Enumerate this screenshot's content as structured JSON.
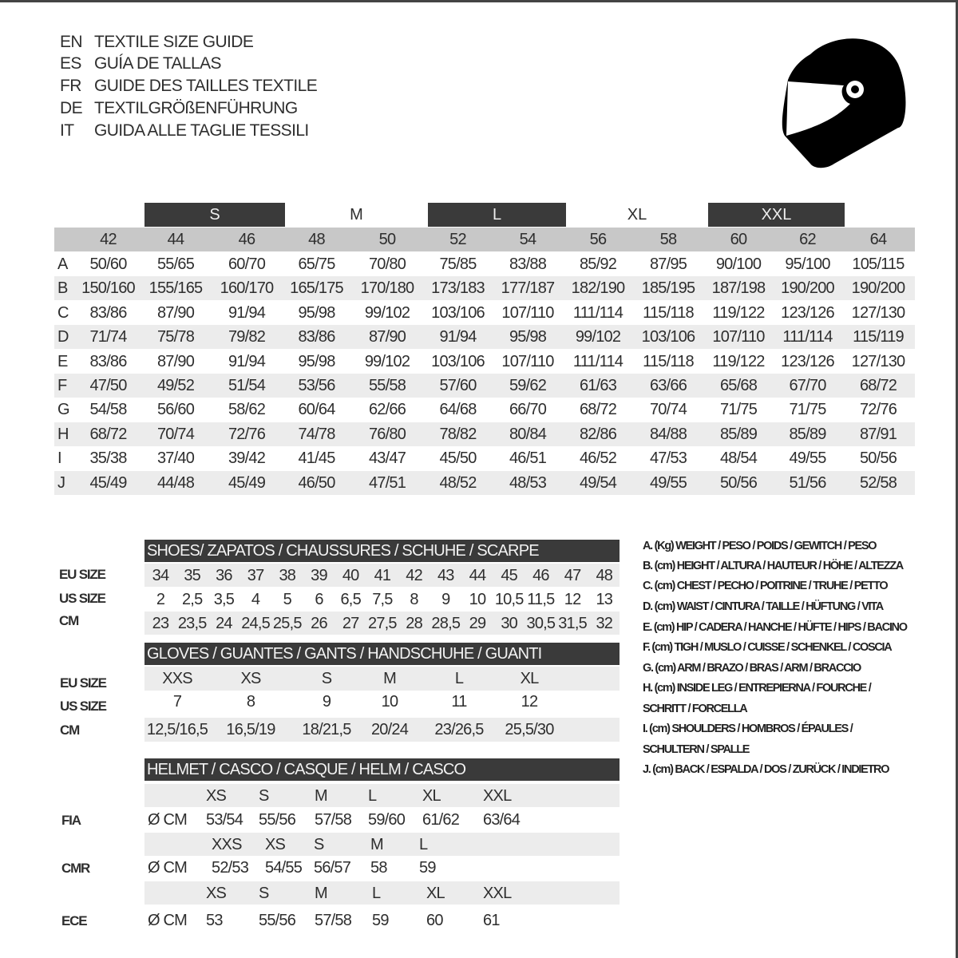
{
  "titles": [
    {
      "code": "EN",
      "text": "TEXTILE SIZE GUIDE"
    },
    {
      "code": "ES",
      "text": "GUÍA DE TALLAS"
    },
    {
      "code": "FR",
      "text": "GUIDE DES TAILLES TEXTILE"
    },
    {
      "code": "DE",
      "text": "TEXTILGRÖßENFÜHRUNG"
    },
    {
      "code": "IT",
      "text": "GUIDA ALLE TAGLIE TESSILI"
    }
  ],
  "logo_icon": "helmet-icon",
  "colors": {
    "dark_bar": "#3a3a3a",
    "header_gray": "#c8c8c8",
    "stripe_gray": "#ececec"
  },
  "textile": {
    "size_groups": [
      "S",
      "M",
      "L",
      "XL",
      "XXL"
    ],
    "sizes": [
      "42",
      "44",
      "46",
      "48",
      "50",
      "52",
      "54",
      "56",
      "58",
      "60",
      "62",
      "64"
    ],
    "rows": [
      {
        "label": "A",
        "values": [
          "50/60",
          "55/65",
          "60/70",
          "65/75",
          "70/80",
          "75/85",
          "83/88",
          "85/92",
          "87/95",
          "90/100",
          "95/100",
          "105/115"
        ]
      },
      {
        "label": "B",
        "values": [
          "150/160",
          "155/165",
          "160/170",
          "165/175",
          "170/180",
          "173/183",
          "177/187",
          "182/190",
          "185/195",
          "187/198",
          "190/200",
          "190/200"
        ]
      },
      {
        "label": "C",
        "values": [
          "83/86",
          "87/90",
          "91/94",
          "95/98",
          "99/102",
          "103/106",
          "107/110",
          "111/114",
          "115/118",
          "119/122",
          "123/126",
          "127/130"
        ]
      },
      {
        "label": "D",
        "values": [
          "71/74",
          "75/78",
          "79/82",
          "83/86",
          "87/90",
          "91/94",
          "95/98",
          "99/102",
          "103/106",
          "107/110",
          "111/114",
          "115/119"
        ]
      },
      {
        "label": "E",
        "values": [
          "83/86",
          "87/90",
          "91/94",
          "95/98",
          "99/102",
          "103/106",
          "107/110",
          "111/114",
          "115/118",
          "119/122",
          "123/126",
          "127/130"
        ]
      },
      {
        "label": "F",
        "values": [
          "47/50",
          "49/52",
          "51/54",
          "53/56",
          "55/58",
          "57/60",
          "59/62",
          "61/63",
          "63/66",
          "65/68",
          "67/70",
          "68/72"
        ]
      },
      {
        "label": "G",
        "values": [
          "54/58",
          "56/60",
          "58/62",
          "60/64",
          "62/66",
          "64/68",
          "66/70",
          "68/72",
          "70/74",
          "71/75",
          "71/75",
          "72/76"
        ]
      },
      {
        "label": "H",
        "values": [
          "68/72",
          "70/74",
          "72/76",
          "74/78",
          "76/80",
          "78/82",
          "80/84",
          "82/86",
          "84/88",
          "85/89",
          "85/89",
          "87/91"
        ]
      },
      {
        "label": "I",
        "values": [
          "35/38",
          "37/40",
          "39/42",
          "41/45",
          "43/47",
          "45/50",
          "46/51",
          "46/52",
          "47/53",
          "48/54",
          "49/55",
          "50/56"
        ]
      },
      {
        "label": "J",
        "values": [
          "45/49",
          "44/48",
          "45/49",
          "46/50",
          "47/51",
          "48/52",
          "48/53",
          "49/54",
          "49/55",
          "50/56",
          "51/56",
          "52/58"
        ]
      }
    ]
  },
  "shoes": {
    "title": "SHOES/ ZAPATOS / CHAUSSURES / SCHUHE / SCARPE",
    "rows": [
      {
        "label": "EU SIZE",
        "values": [
          "34",
          "35",
          "36",
          "37",
          "38",
          "39",
          "40",
          "41",
          "42",
          "43",
          "44",
          "45",
          "46",
          "47",
          "48"
        ]
      },
      {
        "label": "US SIZE",
        "values": [
          "2",
          "2,5",
          "3,5",
          "4",
          "5",
          "6",
          "6,5",
          "7,5",
          "8",
          "9",
          "10",
          "10,5",
          "11,5",
          "12",
          "13"
        ]
      },
      {
        "label": "CM",
        "values": [
          "23",
          "23,5",
          "24",
          "24,5",
          "25,5",
          "26",
          "27",
          "27,5",
          "28",
          "28,5",
          "29",
          "30",
          "30,5",
          "31,5",
          "32"
        ]
      }
    ]
  },
  "gloves": {
    "title": "GLOVES / GUANTES / GANTS / HANDSCHUHE / GUANTI",
    "rows": [
      {
        "label": "EU SIZE",
        "values": [
          "XXS",
          "XS",
          "S",
          "M",
          "L",
          "XL"
        ]
      },
      {
        "label": "US SIZE",
        "values": [
          "7",
          "8",
          "9",
          "10",
          "11",
          "12"
        ]
      },
      {
        "label": "CM",
        "values": [
          "12,5/16,5",
          "16,5/19",
          "18/21,5",
          "20/24",
          "23/26,5",
          "25,5/30"
        ]
      }
    ]
  },
  "helmet": {
    "title": "HELMET / CASCO / CASQUE / HELM / CASCO",
    "groups": [
      {
        "label": "FIA",
        "unit": "Ø CM",
        "sizes": [
          "XS",
          "S",
          "M",
          "L",
          "XL",
          "XXL"
        ],
        "values": [
          "53/54",
          "55/56",
          "57/58",
          "59/60",
          "61/62",
          "63/64"
        ]
      },
      {
        "label": "CMR",
        "unit": "Ø CM",
        "sizes": [
          "XXS",
          "XS",
          "S",
          "M",
          "L"
        ],
        "values": [
          "52/53",
          "54/55",
          "56/57",
          "58",
          "59"
        ]
      },
      {
        "label": "ECE",
        "unit": "Ø CM",
        "sizes": [
          "XS",
          "S",
          "M",
          "L",
          "XL",
          "XXL"
        ],
        "values": [
          "53",
          "55/56",
          "57/58",
          "59",
          "60",
          "61"
        ]
      }
    ]
  },
  "legend": [
    "A. (Kg) WEIGHT / PESO / POIDS / GEWITCH / PESO",
    "B. (cm) HEIGHT / ALTURA / HAUTEUR / HÖHE / ALTEZZA",
    "C. (cm) CHEST / PECHO / POITRINE / TRUHE / PETTO",
    "D. (cm) WAIST / CINTURA / TAILLE / HÜFTUNG / VITA",
    "E. (cm) HIP / CADERA / HANCHE / HÜFTE / HIPS /  BACINO",
    "F.  (cm) TIGH / MUSLO / CUISSE / SCHENKEL / COSCIA",
    "G. (cm) ARM  / BRAZO / BRAS / ARM / BRACCIO",
    "H. (cm) INSIDE LEG / ENTREPIERNA / FOURCHE /",
    "SCHRITT / FORCELLA",
    "I.  (cm) SHOULDERS / HOMBROS / ÉPAULES /",
    "SCHULTERN / SPALLE",
    "J. (cm) BACK / ESPALDA / DOS / ZURÜCK / INDIETRO"
  ]
}
